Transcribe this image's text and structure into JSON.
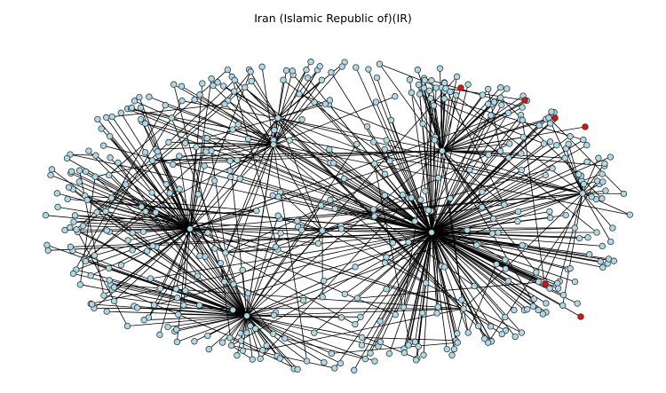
{
  "title": "Iran (Islamic Republic of)(IR)",
  "graph": {
    "node_color": "#add8e6",
    "highlight_color": "#dd1111",
    "edge_color": "#000000",
    "node_stroke": "#222222",
    "node_count": 480,
    "hub_count": 10,
    "highlighted_count": 6
  }
}
